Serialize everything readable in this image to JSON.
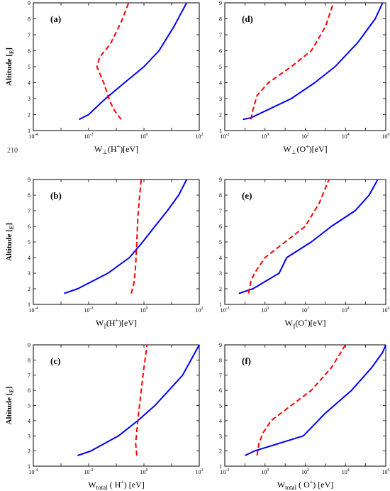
{
  "page_number": "210",
  "colors": {
    "blue_series": "#0000ff",
    "red_series": "#ff0000"
  },
  "chart_data": [
    {
      "type": "line",
      "panel_label": "(a)",
      "xlabel": "W⊥(H+)[eV]",
      "ylabel": "Altitude [RE]",
      "x_scale": "log",
      "xlim_exp": [
        -4,
        2
      ],
      "ylim": [
        1,
        9
      ],
      "x_tick_labels": [
        "10-4",
        "10-2",
        "100",
        "102"
      ],
      "y_tick_labels": [
        "1",
        "2",
        "3",
        "4",
        "5",
        "6",
        "7",
        "8",
        "9"
      ],
      "series": [
        {
          "color": "blue",
          "style": "solid",
          "x": [
            0.0045,
            0.01,
            0.035,
            0.2,
            1.0,
            3.5,
            12,
            35
          ],
          "y": [
            1.7,
            2.0,
            2.9,
            4.0,
            5.0,
            6.0,
            7.5,
            9.0
          ]
        },
        {
          "color": "red",
          "style": "dashed",
          "x": [
            0.15,
            0.09,
            0.06,
            0.035,
            0.02,
            0.025,
            0.06,
            0.15,
            0.28
          ],
          "y": [
            1.7,
            2.2,
            2.8,
            4.0,
            5.0,
            5.6,
            6.4,
            7.8,
            9.0
          ]
        }
      ]
    },
    {
      "type": "line",
      "panel_label": "(b)",
      "xlabel": "W||(H+)[eV]",
      "ylabel": "Altitude [RE]",
      "x_scale": "log",
      "xlim_exp": [
        -4,
        2
      ],
      "ylim": [
        1,
        9
      ],
      "x_tick_labels": [
        "10-4",
        "10-2",
        "100",
        "102"
      ],
      "y_tick_labels": [
        "1",
        "2",
        "3",
        "4",
        "5",
        "6",
        "7",
        "8",
        "9"
      ],
      "series": [
        {
          "color": "blue",
          "style": "solid",
          "x": [
            0.0013,
            0.004,
            0.05,
            0.3,
            0.9,
            2.5,
            7,
            18,
            35
          ],
          "y": [
            1.7,
            2.0,
            3.0,
            4.0,
            5.0,
            6.0,
            7.0,
            8.0,
            9.0
          ]
        },
        {
          "color": "red",
          "style": "dashed",
          "x": [
            0.35,
            0.45,
            0.5,
            0.55,
            0.6,
            0.7,
            0.8
          ],
          "y": [
            1.7,
            2.5,
            3.5,
            5.0,
            6.5,
            8.0,
            9.0
          ]
        }
      ]
    },
    {
      "type": "line",
      "panel_label": "(c)",
      "xlabel_main": "W",
      "xlabel_sub": "total",
      "xlabel_rest": " ( H+) [eV]",
      "ylabel": "Altitude [RE]",
      "x_scale": "log",
      "xlim_exp": [
        -4,
        2
      ],
      "ylim": [
        1,
        9
      ],
      "x_tick_labels": [
        "10-4",
        "10-2",
        "100",
        "102"
      ],
      "y_tick_labels": [
        "1",
        "2",
        "3",
        "4",
        "5",
        "6",
        "7",
        "8",
        "9"
      ],
      "series": [
        {
          "color": "blue",
          "style": "solid",
          "x": [
            0.004,
            0.012,
            0.12,
            0.6,
            2.5,
            8,
            25,
            100
          ],
          "y": [
            1.7,
            2.0,
            3.0,
            4.0,
            5.0,
            6.0,
            7.0,
            9.0
          ]
        },
        {
          "color": "red",
          "style": "dashed",
          "x": [
            0.55,
            0.5,
            0.6,
            0.8,
            1.0,
            1.3
          ],
          "y": [
            1.7,
            2.5,
            4.0,
            6.0,
            7.5,
            9.0
          ]
        }
      ]
    },
    {
      "type": "line",
      "panel_label": "(d)",
      "xlabel": "W⊥(O+)[eV]",
      "ylabel": "",
      "x_scale": "log",
      "xlim_exp": [
        -2,
        6
      ],
      "ylim": [
        1,
        9
      ],
      "x_tick_labels": [
        "10-2",
        "100",
        "102",
        "104",
        "106"
      ],
      "y_tick_labels": [
        "1",
        "2",
        "3",
        "4",
        "5",
        "6",
        "7",
        "8",
        "9"
      ],
      "series": [
        {
          "color": "blue",
          "style": "solid",
          "x": [
            0.08,
            0.2,
            20,
            300,
            3000,
            40000,
            300000,
            700000
          ],
          "y": [
            1.7,
            1.8,
            3.0,
            4.0,
            5.0,
            6.5,
            8.0,
            9.0
          ]
        },
        {
          "color": "red",
          "style": "dashed",
          "x": [
            0.2,
            0.25,
            0.4,
            1.5,
            20,
            200,
            1000,
            2500
          ],
          "y": [
            1.7,
            2.3,
            3.2,
            4.0,
            5.0,
            6.0,
            7.5,
            9.0
          ]
        }
      ]
    },
    {
      "type": "line",
      "panel_label": "(e)",
      "xlabel": "W||(O+)[eV]",
      "ylabel": "",
      "x_scale": "log",
      "xlim_exp": [
        -2,
        6
      ],
      "ylim": [
        1,
        9
      ],
      "x_tick_labels": [
        "10-2",
        "100",
        "102",
        "104",
        "106"
      ],
      "y_tick_labels": [
        "1",
        "2",
        "3",
        "4",
        "5",
        "6",
        "7",
        "8",
        "9"
      ],
      "series": [
        {
          "color": "blue",
          "style": "solid",
          "x": [
            0.05,
            0.25,
            5,
            12,
            200,
            2000,
            30000,
            150000,
            400000
          ],
          "y": [
            1.7,
            2.0,
            3.0,
            4.0,
            5.0,
            6.0,
            7.0,
            8.0,
            9.0
          ]
        },
        {
          "color": "red",
          "style": "dashed",
          "x": [
            0.15,
            0.2,
            0.3,
            1.0,
            10,
            100,
            500,
            1500
          ],
          "y": [
            1.7,
            2.5,
            3.0,
            4.0,
            5.0,
            6.0,
            7.5,
            9.0
          ]
        }
      ]
    },
    {
      "type": "line",
      "panel_label": "(f)",
      "xlabel_main": "W",
      "xlabel_sub": "total",
      "xlabel_rest": " ( O+) [eV]",
      "ylabel": "",
      "x_scale": "log",
      "xlim_exp": [
        -2,
        6
      ],
      "ylim": [
        1,
        9
      ],
      "x_tick_labels": [
        "10-2",
        "100",
        "102",
        "104",
        "106"
      ],
      "y_tick_labels": [
        "1",
        "2",
        "3",
        "4",
        "5",
        "6",
        "7",
        "8",
        "9"
      ],
      "series": [
        {
          "color": "blue",
          "style": "solid",
          "x": [
            0.1,
            0.3,
            80,
            1000,
            20000,
            200000,
            700000,
            1000000
          ],
          "y": [
            1.7,
            2.0,
            3.0,
            4.5,
            6.0,
            7.5,
            8.5,
            9.0
          ]
        },
        {
          "color": "red",
          "style": "dashed",
          "x": [
            0.4,
            0.5,
            0.8,
            2.0,
            20,
            200,
            2000,
            10000
          ],
          "y": [
            1.7,
            2.5,
            3.2,
            4.0,
            5.0,
            6.0,
            7.5,
            9.0
          ]
        }
      ]
    }
  ]
}
